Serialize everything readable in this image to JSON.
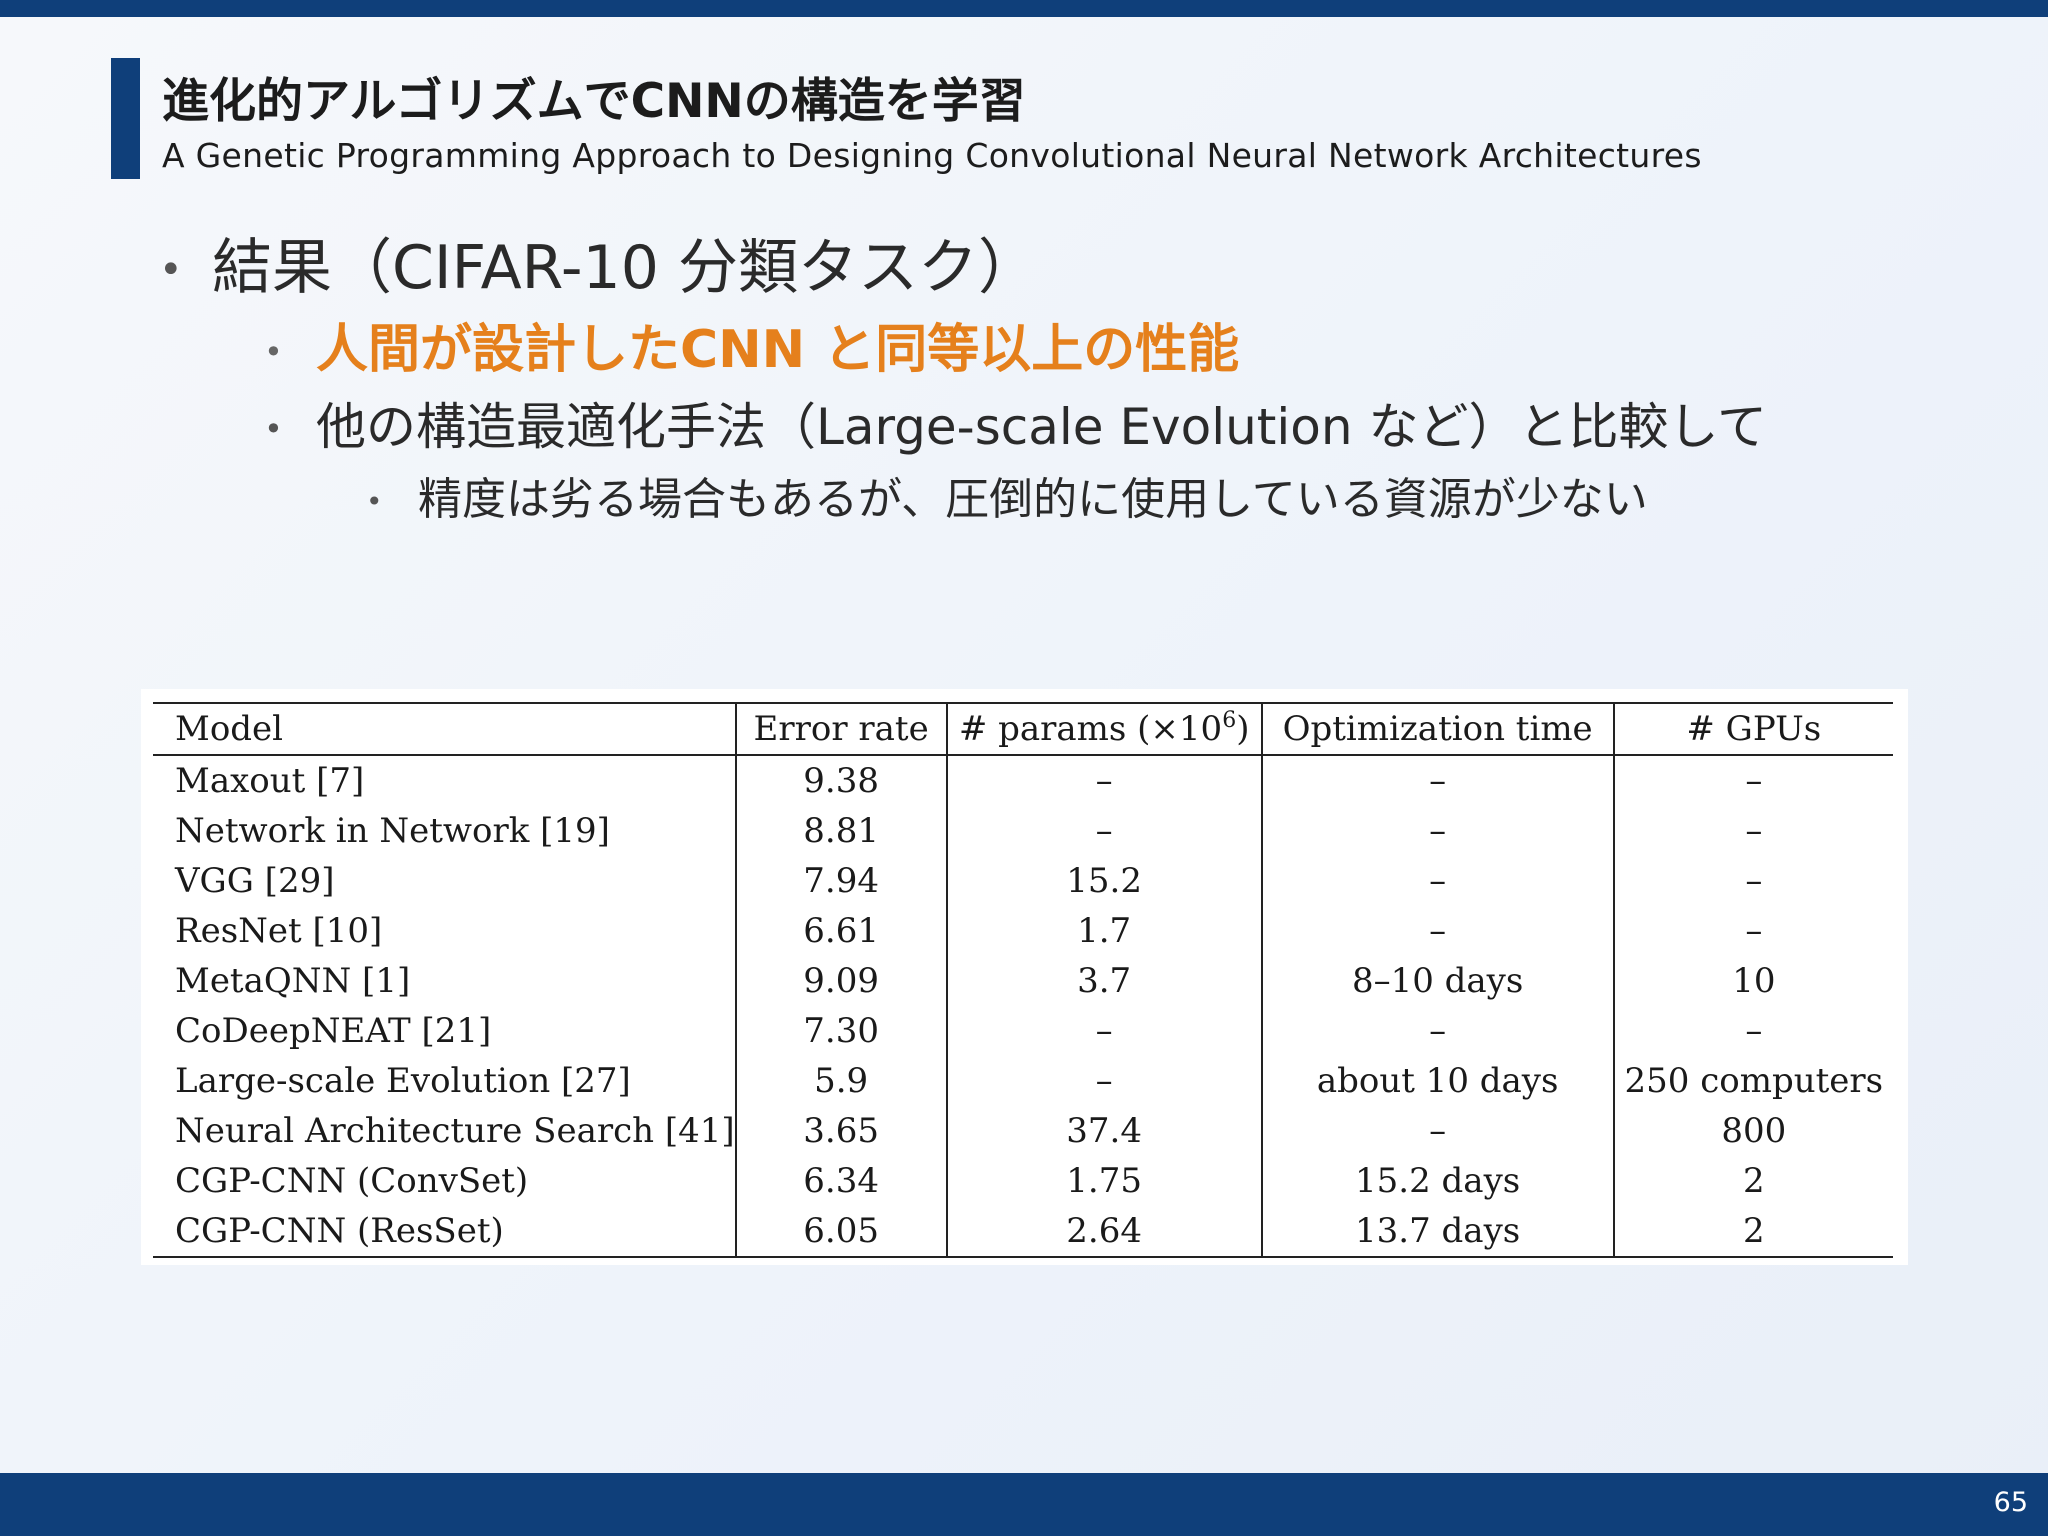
{
  "header": {
    "title_ja": "進化的アルゴリズムでCNNの構造を学習",
    "title_en": "A Genetic Programming Approach to Designing Convolutional Neural Network Architectures"
  },
  "bullets": {
    "level1": "結果（CIFAR-10 分類タスク）",
    "highlight": "人間が設計したCNN と同等以上の性能",
    "comparison": "他の構造最適化手法（Large-scale Evolution など）と比較して",
    "detail": "精度は劣る場合もあるが、圧倒的に使用している資源が少ない",
    "bullet_glyph": "•"
  },
  "table": {
    "headers": {
      "model": "Model",
      "error_rate": "Error rate",
      "params_prefix": "# params (×10",
      "params_exp": "6",
      "params_suffix": ")",
      "optimization_time": "Optimization time",
      "gpus": "# GPUs"
    },
    "rows": [
      {
        "model": "Maxout [7]",
        "error_rate": "9.38",
        "params": "–",
        "time": "–",
        "gpus": "–"
      },
      {
        "model": "Network in Network [19]",
        "error_rate": "8.81",
        "params": "–",
        "time": "–",
        "gpus": "–"
      },
      {
        "model": "VGG [29]",
        "error_rate": "7.94",
        "params": "15.2",
        "time": "–",
        "gpus": "–"
      },
      {
        "model": "ResNet [10]",
        "error_rate": "6.61",
        "params": "1.7",
        "time": "–",
        "gpus": "–"
      },
      {
        "model": "MetaQNN [1]",
        "error_rate": "9.09",
        "params": "3.7",
        "time": "8–10 days",
        "gpus": "10"
      },
      {
        "model": "CoDeepNEAT [21]",
        "error_rate": "7.30",
        "params": "–",
        "time": "–",
        "gpus": "–"
      },
      {
        "model": "Large-scale Evolution [27]",
        "error_rate": "5.9",
        "params": "–",
        "time": "about 10 days",
        "gpus": "250 computers"
      },
      {
        "model": "Neural Architecture Search [41]",
        "error_rate": "3.65",
        "params": "37.4",
        "time": "–",
        "gpus": "800"
      },
      {
        "model": "CGP-CNN (ConvSet)",
        "error_rate": "6.34",
        "params": "1.75",
        "time": "15.2 days",
        "gpus": "2"
      },
      {
        "model": "CGP-CNN (ResSet)",
        "error_rate": "6.05",
        "params": "2.64",
        "time": "13.7 days",
        "gpus": "2"
      }
    ]
  },
  "footer": {
    "page_number": "65"
  },
  "colors": {
    "brand_blue": "#0f3f7a",
    "highlight_orange": "#e5801c"
  }
}
